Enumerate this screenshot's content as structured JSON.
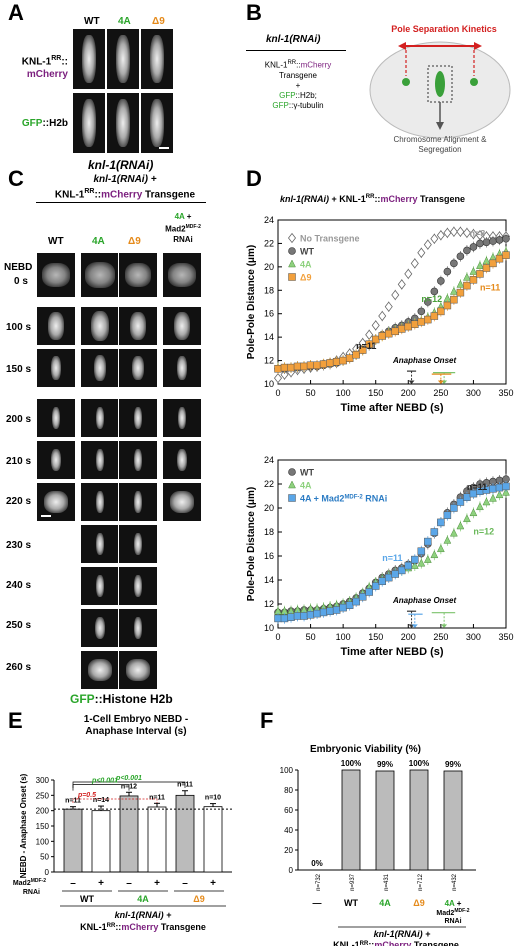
{
  "panelA": {
    "letter": "A",
    "cols": [
      "WT",
      "4A",
      "Δ9"
    ],
    "row1_line1": "KNL-1",
    "row1_sup": "RR",
    "row1_colon": "::",
    "row1_line2": "mCherry",
    "row2_prefix": "GFP",
    "row2_suffix": "::H2b",
    "caption": "knl-1(RNAi)"
  },
  "panelB": {
    "letter": "B",
    "title": "knl-1(RNAi)",
    "line1a": "KNL-1",
    "line1sup": "RR",
    "line1b": "::",
    "line1c": "mCherry",
    "line2": "Transgene",
    "plus": "+",
    "line3a": "GFP",
    "line3b": "::H2b;",
    "line4a": "GFP",
    "line4b": "::γ-tubulin",
    "kinetics": "Pole Separation Kinetics",
    "align": "Chromosome Alignment &",
    "seg": "Segregation"
  },
  "panelC": {
    "letter": "C",
    "title1": "knl-1(RNAi) +",
    "title2a": "KNL-1",
    "title2sup": "RR",
    "title2b": "::",
    "title2c": "mCherry",
    "title2d": " Transgene",
    "cols": [
      "WT",
      "4A",
      "Δ9"
    ],
    "col4a": "4A",
    "col4b": "+",
    "col4c": "Mad2",
    "col4sup": "MDF-2",
    "col4d": "RNAi",
    "rows": [
      "NEBD",
      "0 s",
      "100 s",
      "150 s",
      "200 s",
      "210 s",
      "220 s",
      "230 s",
      "240 s",
      "250 s",
      "260 s"
    ],
    "footer_a": "GFP",
    "footer_b": "::Histone H2b"
  },
  "panelD": {
    "letter": "D",
    "title_a": "knl-1(RNAi)",
    "title_b": " + KNL-1",
    "title_sup": "RR",
    "title_c": "::",
    "title_d": "mCherry",
    "title_e": " Transgene",
    "ylabel": "Pole-Pole Distance (μm)",
    "xlabel": "Time after NEBD (s)",
    "anaphase": "Anaphase Onset",
    "top_legend": [
      "No Transgene",
      "WT",
      "4A",
      "Δ9"
    ],
    "top_n": [
      "n=8",
      "n=11",
      "n=12",
      "n=11"
    ],
    "bot_legend_1": "WT",
    "bot_legend_2": "4A",
    "bot_legend_3a": "4A + Mad2",
    "bot_legend_3sup": "MDF-2",
    "bot_legend_3b": " RNAi",
    "bot_n": [
      "n=11",
      "n=11",
      "n=12"
    ]
  },
  "panelE": {
    "letter": "E",
    "title1": "1-Cell Embryo NEBD -",
    "title2": "Anaphase Interval (s)",
    "ylabel": "NEBD - Anaphase Onset (s)",
    "p1": "p<0.001",
    "p2": "p<0.001",
    "p3": "p=0.5",
    "n": [
      "n=11",
      "n=14",
      "n=12",
      "n=11",
      "n=11",
      "n=10"
    ],
    "mad2a": "Mad2",
    "mad2sup": "MDF-2",
    "mad2b": "RNAi",
    "signs": [
      "–",
      "+",
      "–",
      "+",
      "–",
      "+"
    ],
    "groups": [
      "WT",
      "4A",
      "Δ9"
    ],
    "foot1": "knl-1(RNAi) +",
    "foot2a": "KNL-1",
    "foot2sup": "RR",
    "foot2b": "::",
    "foot2c": "mCherry",
    "foot2d": " Transgene"
  },
  "panelF": {
    "letter": "F",
    "title": "Embryonic Viability (%)",
    "pct": [
      "0%",
      "100%",
      "99%",
      "100%",
      "99%"
    ],
    "n": [
      "n=732",
      "n=937",
      "n=431",
      "n=712",
      "n=432"
    ],
    "cats": [
      "—",
      "WT",
      "4A",
      "Δ9"
    ],
    "cat5a": "4A",
    "cat5b": "+",
    "cat5c": "Mad2",
    "cat5sup": "MDF-2",
    "cat5d": "RNAi",
    "foot1": "knl-1(RNAi) +",
    "foot2a": "KNL-1",
    "foot2sup": "RR",
    "foot2b": "::",
    "foot2c": "mCherry",
    "foot2d": " Transgene"
  },
  "chart_data": [
    {
      "id": "D-top",
      "type": "line",
      "xlabel": "Time after NEBD (s)",
      "ylabel": "Pole-Pole Distance (μm)",
      "xlim": [
        0,
        350
      ],
      "ylim": [
        10,
        24
      ],
      "xticks": [
        0,
        50,
        100,
        150,
        200,
        250,
        300,
        350
      ],
      "yticks": [
        10,
        12,
        14,
        16,
        18,
        20,
        22,
        24
      ],
      "x": [
        0,
        10,
        20,
        30,
        40,
        50,
        60,
        70,
        80,
        90,
        100,
        110,
        120,
        130,
        140,
        150,
        160,
        170,
        180,
        190,
        200,
        210,
        220,
        230,
        240,
        250,
        260,
        270,
        280,
        290,
        300,
        310,
        320,
        330,
        340,
        350
      ],
      "series": [
        {
          "name": "No Transgene",
          "color": "#a8a8a8",
          "marker": "diamond",
          "values": [
            10.5,
            10.8,
            11.0,
            11.2,
            11.3,
            11.4,
            11.5,
            11.7,
            11.8,
            12.0,
            12.3,
            12.6,
            13.0,
            13.5,
            14.2,
            15.0,
            15.8,
            16.6,
            17.6,
            18.5,
            19.4,
            20.3,
            21.2,
            21.9,
            22.4,
            22.7,
            22.9,
            23.0,
            23.0,
            22.9,
            22.8,
            22.7,
            22.6,
            22.6,
            22.6,
            22.6
          ]
        },
        {
          "name": "WT",
          "color": "#777777",
          "marker": "circle",
          "values": [
            11.3,
            11.3,
            11.4,
            11.4,
            11.5,
            11.5,
            11.5,
            11.6,
            11.7,
            11.8,
            12.0,
            12.2,
            12.5,
            12.9,
            13.3,
            13.8,
            14.2,
            14.5,
            14.8,
            15.0,
            15.3,
            15.6,
            16.2,
            17.0,
            17.9,
            18.8,
            19.6,
            20.3,
            20.9,
            21.4,
            21.7,
            22.0,
            22.1,
            22.2,
            22.3,
            22.4
          ]
        },
        {
          "name": "4A",
          "color": "#8ed17e",
          "marker": "triangle",
          "values": [
            11.4,
            11.4,
            11.4,
            11.5,
            11.5,
            11.6,
            11.6,
            11.7,
            11.8,
            11.9,
            12.0,
            12.2,
            12.5,
            12.9,
            13.4,
            13.8,
            14.1,
            14.4,
            14.6,
            14.8,
            15.0,
            15.2,
            15.4,
            15.7,
            16.1,
            16.6,
            17.3,
            17.9,
            18.5,
            19.1,
            19.6,
            20.1,
            20.5,
            20.8,
            21.1,
            21.3
          ]
        },
        {
          "name": "Δ9",
          "color": "#f2a03c",
          "marker": "square",
          "values": [
            11.3,
            11.4,
            11.4,
            11.5,
            11.5,
            11.6,
            11.6,
            11.7,
            11.8,
            11.9,
            12.0,
            12.2,
            12.5,
            12.9,
            13.4,
            13.8,
            14.1,
            14.3,
            14.5,
            14.7,
            14.9,
            15.1,
            15.3,
            15.5,
            15.8,
            16.2,
            16.7,
            17.2,
            17.8,
            18.4,
            18.9,
            19.4,
            19.9,
            20.3,
            20.7,
            21.0
          ]
        }
      ],
      "annotations": {
        "anaphase_onset": {
          "WT": 205,
          "4A": 255,
          "Δ9": 250
        }
      }
    },
    {
      "id": "D-bottom",
      "type": "line",
      "xlabel": "Time after NEBD (s)",
      "ylabel": "Pole-Pole Distance (μm)",
      "xlim": [
        0,
        350
      ],
      "ylim": [
        10,
        24
      ],
      "xticks": [
        0,
        50,
        100,
        150,
        200,
        250,
        300,
        350
      ],
      "yticks": [
        10,
        12,
        14,
        16,
        18,
        20,
        22,
        24
      ],
      "x": [
        0,
        10,
        20,
        30,
        40,
        50,
        60,
        70,
        80,
        90,
        100,
        110,
        120,
        130,
        140,
        150,
        160,
        170,
        180,
        190,
        200,
        210,
        220,
        230,
        240,
        250,
        260,
        270,
        280,
        290,
        300,
        310,
        320,
        330,
        340,
        350
      ],
      "series": [
        {
          "name": "WT",
          "color": "#777777",
          "marker": "circle",
          "values": [
            11.3,
            11.3,
            11.4,
            11.4,
            11.5,
            11.5,
            11.5,
            11.6,
            11.7,
            11.8,
            12.0,
            12.2,
            12.5,
            12.9,
            13.3,
            13.8,
            14.2,
            14.5,
            14.8,
            15.0,
            15.3,
            15.6,
            16.2,
            17.0,
            17.9,
            18.8,
            19.6,
            20.3,
            20.9,
            21.4,
            21.7,
            22.0,
            22.1,
            22.2,
            22.3,
            22.4
          ]
        },
        {
          "name": "4A",
          "color": "#8ed17e",
          "marker": "triangle",
          "values": [
            11.4,
            11.4,
            11.4,
            11.5,
            11.5,
            11.6,
            11.6,
            11.7,
            11.8,
            11.9,
            12.0,
            12.2,
            12.5,
            12.9,
            13.4,
            13.8,
            14.1,
            14.4,
            14.6,
            14.8,
            15.0,
            15.2,
            15.4,
            15.7,
            16.1,
            16.6,
            17.3,
            17.9,
            18.5,
            19.1,
            19.6,
            20.1,
            20.5,
            20.8,
            21.1,
            21.3
          ]
        },
        {
          "name": "4A + Mad2MDF-2 RNAi",
          "color": "#5aa6e8",
          "marker": "square",
          "values": [
            10.8,
            10.8,
            10.9,
            11.0,
            11.0,
            11.1,
            11.2,
            11.3,
            11.4,
            11.5,
            11.7,
            11.9,
            12.2,
            12.6,
            13.0,
            13.5,
            13.9,
            14.2,
            14.5,
            14.8,
            15.2,
            15.7,
            16.4,
            17.2,
            18.0,
            18.8,
            19.4,
            20.0,
            20.5,
            20.9,
            21.2,
            21.4,
            21.5,
            21.6,
            21.7,
            21.8
          ]
        }
      ],
      "annotations": {
        "anaphase_onset": {
          "WT": 205,
          "4A": 255,
          "4A + Mad2MDF-2 RNAi": 210
        }
      }
    },
    {
      "id": "E",
      "type": "bar",
      "title": "1-Cell Embryo NEBD - Anaphase Interval (s)",
      "ylabel": "NEBD - Anaphase Onset (s)",
      "ylim": [
        0,
        300
      ],
      "yticks": [
        0,
        50,
        100,
        150,
        200,
        250,
        300
      ],
      "categories": [
        "WT –",
        "WT +",
        "4A –",
        "4A +",
        "Δ9 –",
        "Δ9 +"
      ],
      "values": [
        205,
        200,
        248,
        212,
        250,
        213
      ],
      "errors": [
        8,
        15,
        12,
        12,
        15,
        10
      ],
      "colors": [
        "#bbbbbb",
        "#ffffff",
        "#bbbbbb",
        "#ffffff",
        "#bbbbbb",
        "#ffffff"
      ],
      "reference_line": 205
    },
    {
      "id": "F",
      "type": "bar",
      "title": "Embryonic Viability (%)",
      "ylim": [
        0,
        100
      ],
      "yticks": [
        0,
        20,
        40,
        60,
        80,
        100
      ],
      "categories": [
        "—",
        "WT",
        "4A",
        "Δ9",
        "4A + Mad2MDF-2 RNAi"
      ],
      "values": [
        0,
        100,
        99,
        100,
        99
      ]
    }
  ]
}
